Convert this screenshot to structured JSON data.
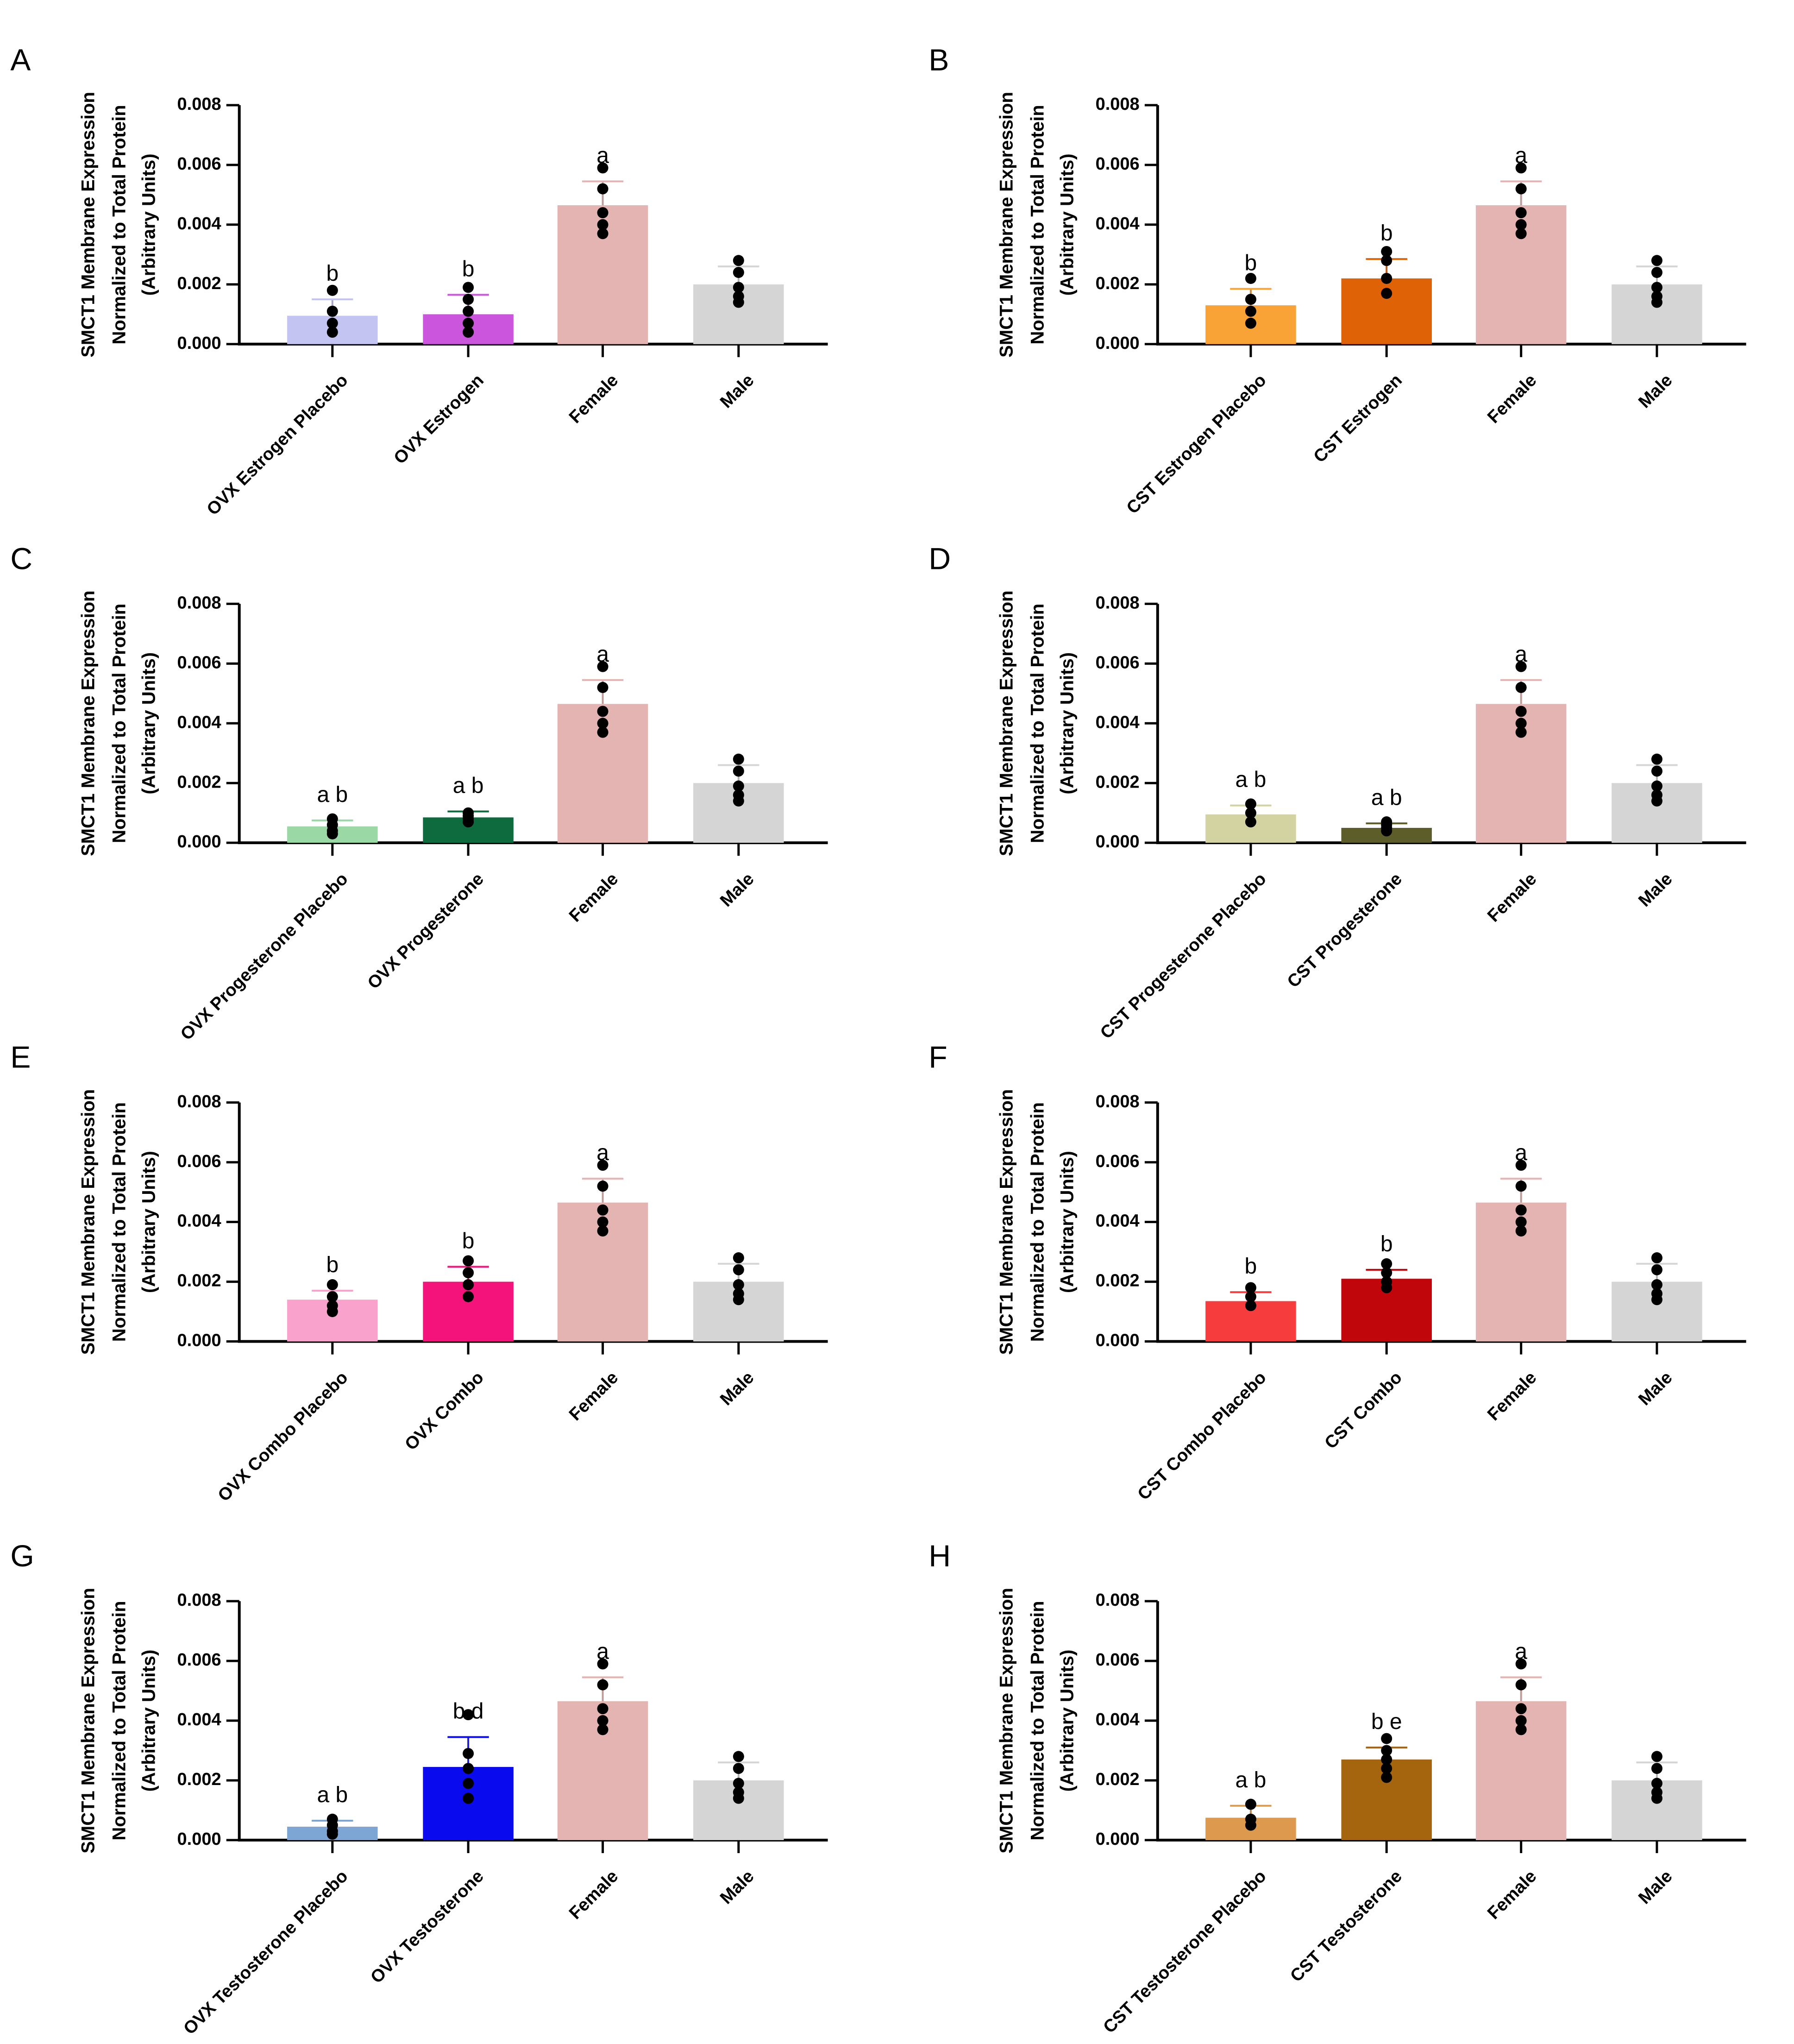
{
  "chart_data": [
    {
      "panel": "A",
      "type": "bar",
      "ylabel": [
        "SMCT1 Membrane Expression",
        "Normalized to Total Protein",
        "(Arbitrary Units)"
      ],
      "ylim": [
        0,
        0.008
      ],
      "yticks": [
        "0.000",
        "0.002",
        "0.004",
        "0.006",
        "0.008"
      ],
      "categories": [
        "OVX Estrogen Placebo",
        "OVX Estrogen",
        "Female",
        "Male"
      ],
      "values": [
        0.00095,
        0.001,
        0.00465,
        0.002
      ],
      "errors": [
        0.00055,
        0.00065,
        0.0008,
        0.0006
      ],
      "colors": [
        "#c4c4f2",
        "#cc55dd",
        "#e4b4b2",
        "#d5d5d5"
      ],
      "significance": [
        "b",
        "b",
        "a",
        ""
      ],
      "points": [
        [
          0.0018,
          0.0011,
          0.0007,
          0.0004
        ],
        [
          0.0019,
          0.0015,
          0.0011,
          0.0007,
          0.0004
        ],
        [
          0.0059,
          0.0052,
          0.0044,
          0.004,
          0.0037
        ],
        [
          0.0028,
          0.0024,
          0.0019,
          0.0016,
          0.0014
        ]
      ]
    },
    {
      "panel": "B",
      "type": "bar",
      "ylabel": [
        "SMCT1 Membrane Expression",
        "Normalized to Total Protein",
        "(Arbitrary Units)"
      ],
      "ylim": [
        0,
        0.008
      ],
      "yticks": [
        "0.000",
        "0.002",
        "0.004",
        "0.006",
        "0.008"
      ],
      "categories": [
        "CST Estrogen Placebo",
        "CST Estrogen",
        "Female",
        "Male"
      ],
      "values": [
        0.0013,
        0.0022,
        0.00465,
        0.002
      ],
      "errors": [
        0.00055,
        0.00065,
        0.0008,
        0.0006
      ],
      "colors": [
        "#f9a236",
        "#e06206",
        "#e4b4b2",
        "#d5d5d5"
      ],
      "significance": [
        "b",
        "b",
        "a",
        ""
      ],
      "points": [
        [
          0.0022,
          0.0015,
          0.0011,
          0.0007
        ],
        [
          0.0031,
          0.0028,
          0.0022,
          0.0017
        ],
        [
          0.0059,
          0.0052,
          0.0044,
          0.004,
          0.0037
        ],
        [
          0.0028,
          0.0024,
          0.0019,
          0.0016,
          0.0014
        ]
      ]
    },
    {
      "panel": "C",
      "type": "bar",
      "ylabel": [
        "SMCT1 Membrane Expression",
        "Normalized to Total Protein",
        "(Arbitrary Units)"
      ],
      "ylim": [
        0,
        0.008
      ],
      "yticks": [
        "0.000",
        "0.002",
        "0.004",
        "0.006",
        "0.008"
      ],
      "categories": [
        "OVX Progesterone Placebo",
        "OVX Progesterone",
        "Female",
        "Male"
      ],
      "values": [
        0.00055,
        0.00085,
        0.00465,
        0.002
      ],
      "errors": [
        0.0002,
        0.0002,
        0.0008,
        0.0006
      ],
      "colors": [
        "#9ad8a6",
        "#0d6b3d",
        "#e4b4b2",
        "#d5d5d5"
      ],
      "significance": [
        "a b",
        "a b",
        "a",
        ""
      ],
      "points": [
        [
          0.0008,
          0.0006,
          0.0004,
          0.0003
        ],
        [
          0.001,
          0.0009,
          0.0008,
          0.0007
        ],
        [
          0.0059,
          0.0052,
          0.0044,
          0.004,
          0.0037
        ],
        [
          0.0028,
          0.0024,
          0.0019,
          0.0016,
          0.0014
        ]
      ]
    },
    {
      "panel": "D",
      "type": "bar",
      "ylabel": [
        "SMCT1 Membrane Expression",
        "Normalized to Total Protein",
        "(Arbitrary Units)"
      ],
      "ylim": [
        0,
        0.008
      ],
      "yticks": [
        "0.000",
        "0.002",
        "0.004",
        "0.006",
        "0.008"
      ],
      "categories": [
        "CST Progesterone Placebo",
        "CST Progesterone",
        "Female",
        "Male"
      ],
      "values": [
        0.00095,
        0.0005,
        0.00465,
        0.002
      ],
      "errors": [
        0.0003,
        0.00015,
        0.0008,
        0.0006
      ],
      "colors": [
        "#d3d3a2",
        "#5d5d2a",
        "#e4b4b2",
        "#d5d5d5"
      ],
      "significance": [
        "a b",
        "a b",
        "a",
        ""
      ],
      "points": [
        [
          0.0013,
          0.001,
          0.0007
        ],
        [
          0.0007,
          0.0006,
          0.0005,
          0.0004
        ],
        [
          0.0059,
          0.0052,
          0.0044,
          0.004,
          0.0037
        ],
        [
          0.0028,
          0.0024,
          0.0019,
          0.0016,
          0.0014
        ]
      ]
    },
    {
      "panel": "E",
      "type": "bar",
      "ylabel": [
        "SMCT1 Membrane Expression",
        "Normalized to Total Protein",
        "(Arbitrary Units)"
      ],
      "ylim": [
        0,
        0.008
      ],
      "yticks": [
        "0.000",
        "0.002",
        "0.004",
        "0.006",
        "0.008"
      ],
      "categories": [
        "OVX Combo Placebo",
        "OVX Combo",
        "Female",
        "Male"
      ],
      "values": [
        0.0014,
        0.002,
        0.00465,
        0.002
      ],
      "errors": [
        0.0003,
        0.0005,
        0.0008,
        0.0006
      ],
      "colors": [
        "#f9a3cc",
        "#f3137a",
        "#e4b4b2",
        "#d5d5d5"
      ],
      "significance": [
        "b",
        "b",
        "a",
        ""
      ],
      "points": [
        [
          0.0019,
          0.0015,
          0.0012,
          0.001
        ],
        [
          0.0027,
          0.0023,
          0.0019,
          0.0015
        ],
        [
          0.0059,
          0.0052,
          0.0044,
          0.004,
          0.0037
        ],
        [
          0.0028,
          0.0024,
          0.0019,
          0.0016,
          0.0014
        ]
      ]
    },
    {
      "panel": "F",
      "type": "bar",
      "ylabel": [
        "SMCT1 Membrane Expression",
        "Normalized to Total Protein",
        "(Arbitrary Units)"
      ],
      "ylim": [
        0,
        0.008
      ],
      "yticks": [
        "0.000",
        "0.002",
        "0.004",
        "0.006",
        "0.008"
      ],
      "categories": [
        "CST Combo Placebo",
        "CST Combo",
        "Female",
        "Male"
      ],
      "values": [
        0.00135,
        0.0021,
        0.00465,
        0.002
      ],
      "errors": [
        0.0003,
        0.0003,
        0.0008,
        0.0006
      ],
      "colors": [
        "#f73c3e",
        "#c1060b",
        "#e4b4b2",
        "#d5d5d5"
      ],
      "significance": [
        "b",
        "b",
        "a",
        ""
      ],
      "points": [
        [
          0.0018,
          0.0015,
          0.0012
        ],
        [
          0.0026,
          0.0023,
          0.002,
          0.0018
        ],
        [
          0.0059,
          0.0052,
          0.0044,
          0.004,
          0.0037
        ],
        [
          0.0028,
          0.0024,
          0.0019,
          0.0016,
          0.0014
        ]
      ]
    },
    {
      "panel": "G",
      "type": "bar",
      "ylabel": [
        "SMCT1 Membrane Expression",
        "Normalized to Total Protein",
        "(Arbitrary Units)"
      ],
      "ylim": [
        0,
        0.008
      ],
      "yticks": [
        "0.000",
        "0.002",
        "0.004",
        "0.006",
        "0.008"
      ],
      "categories": [
        "OVX Testosterone Placebo",
        "OVX Testosterone",
        "Female",
        "Male"
      ],
      "values": [
        0.00045,
        0.00245,
        0.00465,
        0.002
      ],
      "errors": [
        0.0002,
        0.001,
        0.0008,
        0.0006
      ],
      "colors": [
        "#7ea6d5",
        "#0a0aef",
        "#e4b4b2",
        "#d5d5d5"
      ],
      "significance": [
        "a b",
        "b d",
        "a",
        ""
      ],
      "points": [
        [
          0.0007,
          0.0005,
          0.0003,
          0.0002
        ],
        [
          0.0042,
          0.0029,
          0.0024,
          0.0019,
          0.0014
        ],
        [
          0.0059,
          0.0052,
          0.0044,
          0.004,
          0.0037
        ],
        [
          0.0028,
          0.0024,
          0.0019,
          0.0016,
          0.0014
        ]
      ]
    },
    {
      "panel": "H",
      "type": "bar",
      "ylabel": [
        "SMCT1 Membrane Expression",
        "Normalized to Total Protein",
        "(Arbitrary Units)"
      ],
      "ylim": [
        0,
        0.008
      ],
      "yticks": [
        "0.000",
        "0.002",
        "0.004",
        "0.006",
        "0.008"
      ],
      "categories": [
        "CST Testosterone Placebo",
        "CST Testosterone",
        "Female",
        "Male"
      ],
      "values": [
        0.00075,
        0.0027,
        0.00465,
        0.002
      ],
      "errors": [
        0.0004,
        0.0004,
        0.0008,
        0.0006
      ],
      "colors": [
        "#dd9a4e",
        "#a5650f",
        "#e4b4b2",
        "#d5d5d5"
      ],
      "significance": [
        "a b",
        "b e",
        "a",
        ""
      ],
      "points": [
        [
          0.0012,
          0.0007,
          0.0005
        ],
        [
          0.0034,
          0.003,
          0.0027,
          0.0024,
          0.0021
        ],
        [
          0.0059,
          0.0052,
          0.0044,
          0.004,
          0.0037
        ],
        [
          0.0028,
          0.0024,
          0.0019,
          0.0016,
          0.0014
        ]
      ]
    }
  ]
}
